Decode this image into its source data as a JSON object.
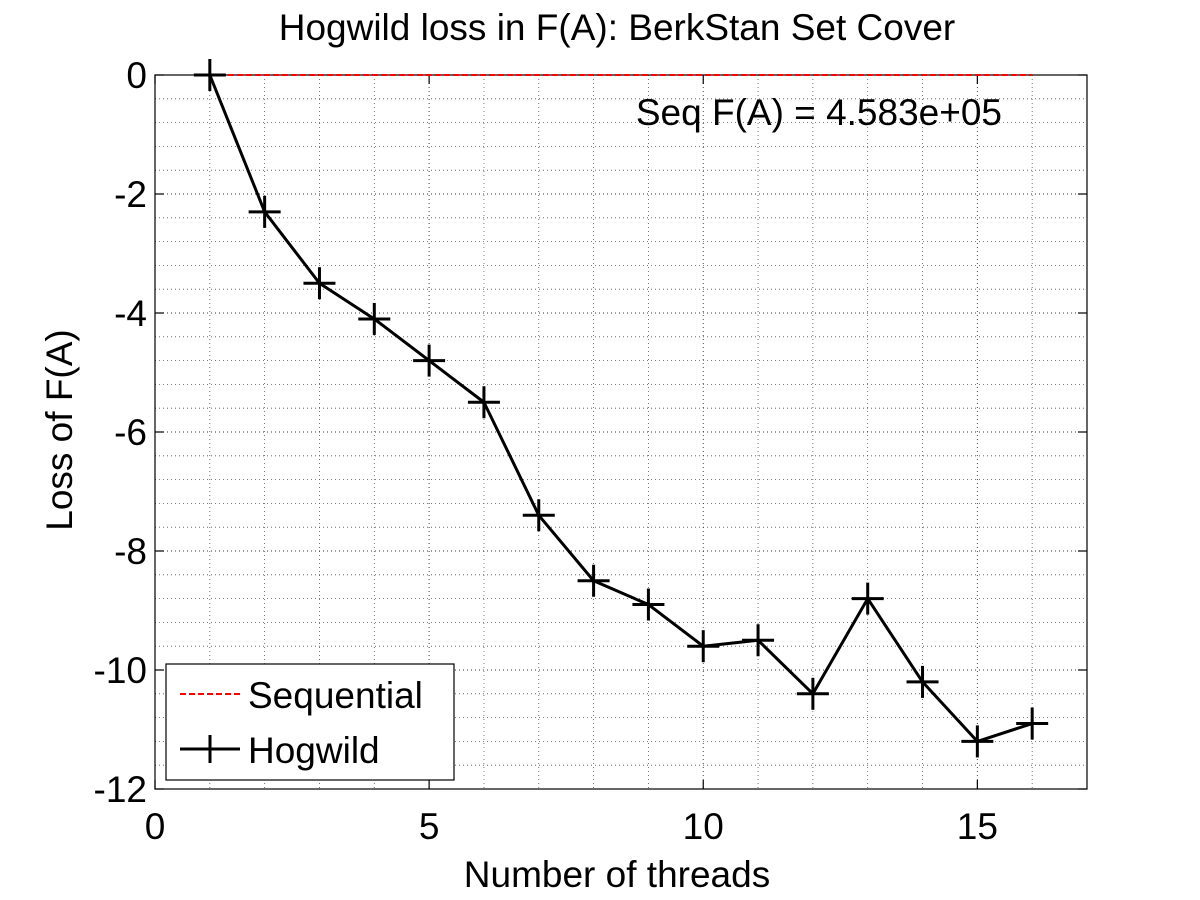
{
  "chart_data": {
    "type": "line",
    "title": "Hogwild loss in F(A): BerkStan Set Cover",
    "xlabel": "Number of threads",
    "ylabel": "Loss of F(A)",
    "xlim": [
      0,
      17
    ],
    "ylim": [
      -12,
      0
    ],
    "xticks": [
      0,
      5,
      10,
      15
    ],
    "yticks": [
      0,
      -2,
      -4,
      -6,
      -8,
      -10,
      -12
    ],
    "grid": true,
    "minor_grid": true,
    "legend_position": "bottom-left",
    "annotation": "Seq F(A) = 4.583e+05",
    "series": [
      {
        "name": "Sequential",
        "color": "#ff0000",
        "style": "dashed",
        "x": [
          1,
          16
        ],
        "y": [
          0,
          0
        ]
      },
      {
        "name": "Hogwild",
        "color": "#000000",
        "style": "solid",
        "marker": "plus",
        "x": [
          1,
          2,
          3,
          4,
          5,
          6,
          7,
          8,
          9,
          10,
          11,
          12,
          13,
          14,
          15,
          16
        ],
        "y": [
          0,
          -2.3,
          -3.5,
          -4.1,
          -4.8,
          -5.5,
          -7.4,
          -8.5,
          -8.9,
          -9.6,
          -9.5,
          -10.4,
          -8.8,
          -10.2,
          -11.2,
          -10.9
        ]
      }
    ]
  }
}
